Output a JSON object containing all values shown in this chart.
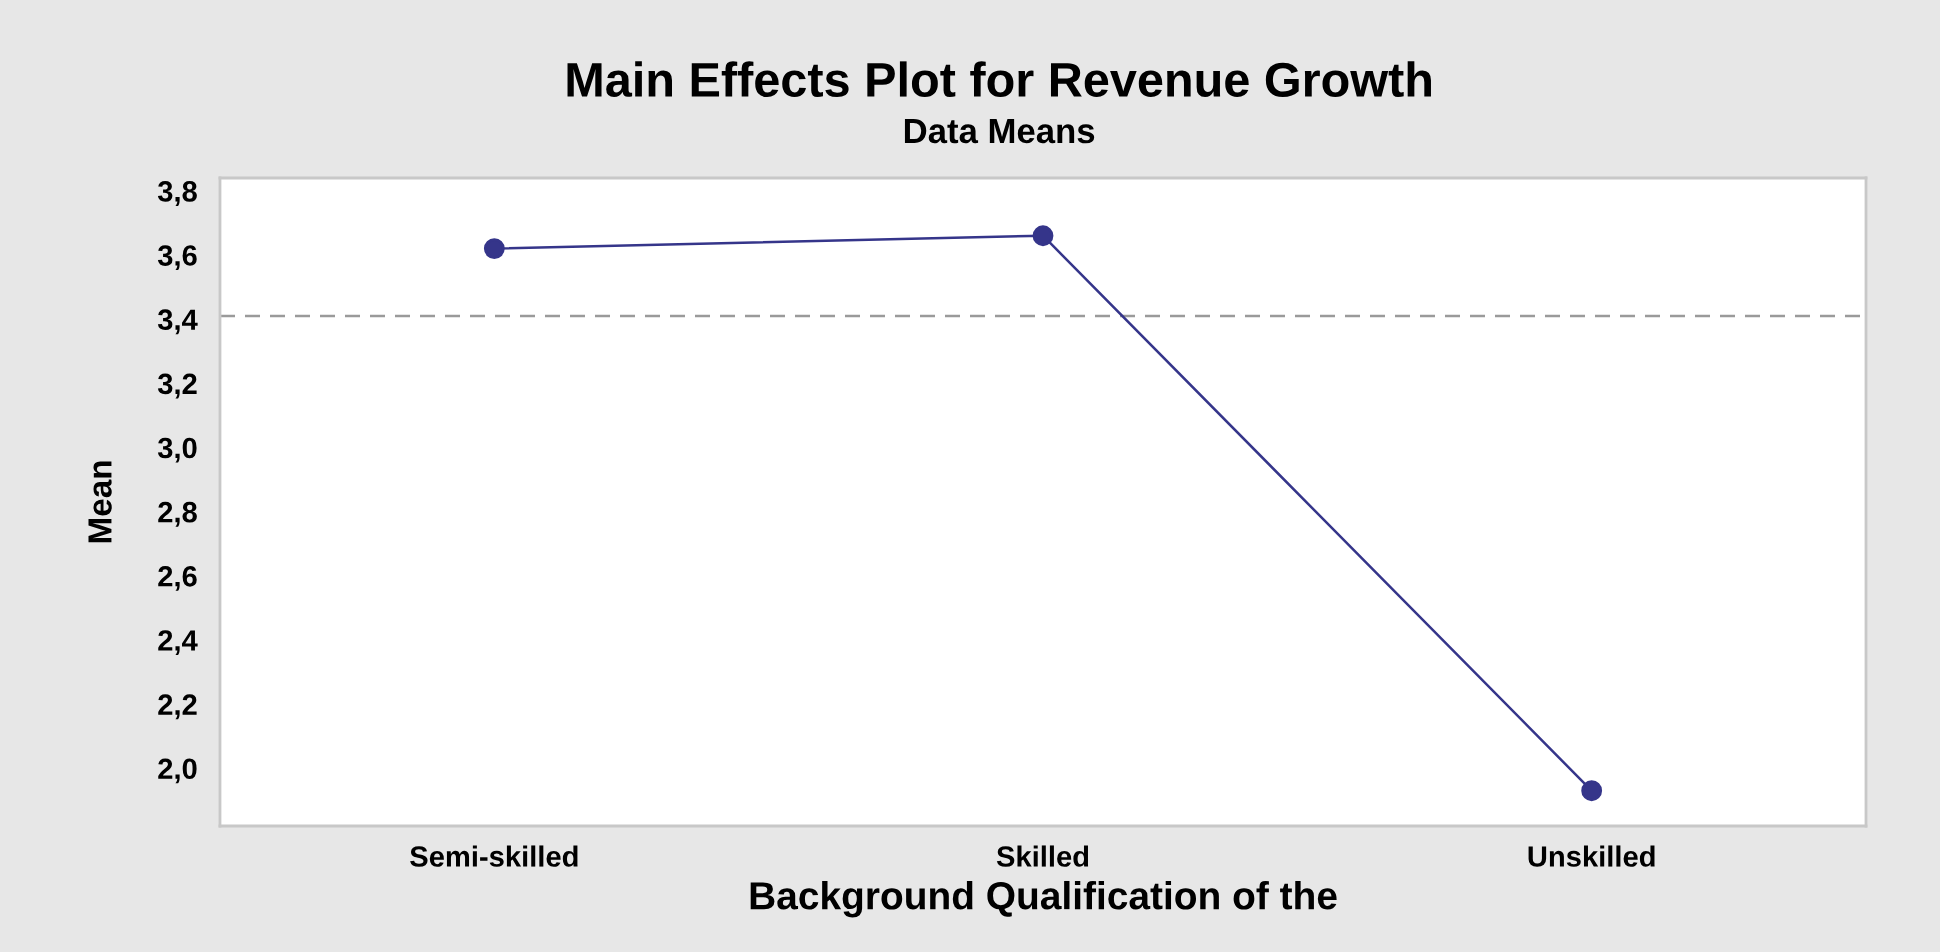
{
  "chart_data": {
    "type": "line",
    "title": "Main Effects Plot for Revenue Growth",
    "subtitle": "Data Means",
    "xlabel": "Background Qualification of the",
    "ylabel": "Mean",
    "categories": [
      "Semi-skilled",
      "Skilled",
      "Unskilled"
    ],
    "series": [
      {
        "color": "#35358a",
        "values": [
          3.62,
          3.66,
          1.93
        ]
      }
    ],
    "marker": "circle",
    "line_style": "solid",
    "grid": false,
    "ylim": [
      1.82,
      3.84
    ],
    "yticks": [
      {
        "value": 2.0,
        "label": "2,0"
      },
      {
        "value": 2.2,
        "label": "2,2"
      },
      {
        "value": 2.4,
        "label": "2,4"
      },
      {
        "value": 2.6,
        "label": "2,6"
      },
      {
        "value": 2.8,
        "label": "2,8"
      },
      {
        "value": 3.0,
        "label": "3,0"
      },
      {
        "value": 3.2,
        "label": "3,2"
      },
      {
        "value": 3.4,
        "label": "3,4"
      },
      {
        "value": 3.6,
        "label": "3,6"
      },
      {
        "value": 3.8,
        "label": "3,8"
      }
    ],
    "ref_lines": [
      {
        "axis": "y",
        "value": 3.41,
        "color": "#9a9a9a",
        "line_style": "dashed"
      }
    ]
  }
}
